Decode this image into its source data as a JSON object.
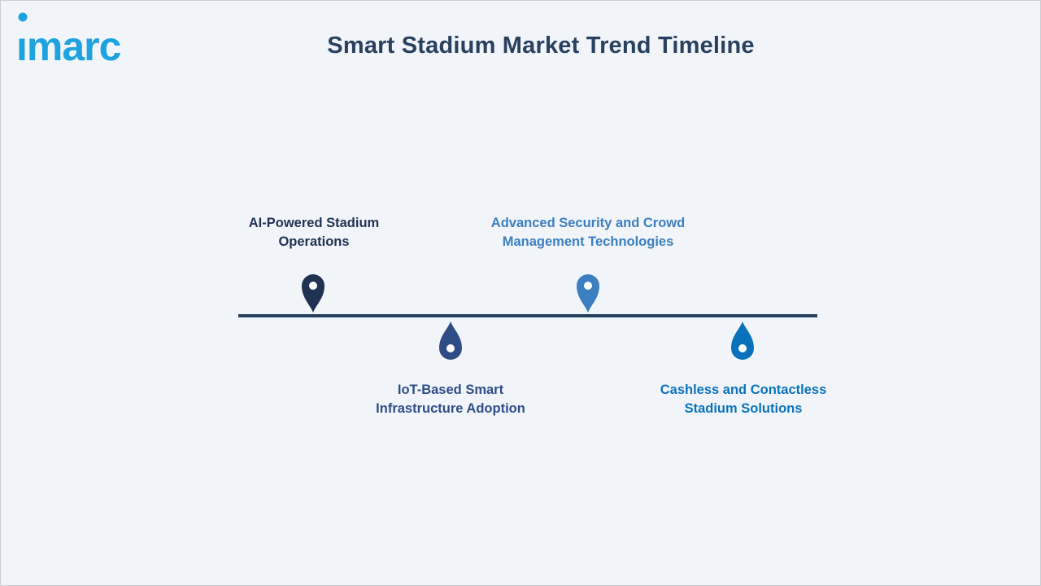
{
  "title": "Smart Stadium Market Trend Timeline",
  "logo": {
    "text": "imarc",
    "color": "#1fa3e0"
  },
  "timeline": {
    "line_color": "#28415f",
    "items": [
      {
        "lines": [
          "AI-Powered Stadium",
          "Operations"
        ],
        "color": "#1f3251",
        "position": "above",
        "icon": "map-pin-icon"
      },
      {
        "lines": [
          "IoT-Based Smart",
          "Infrastructure Adoption"
        ],
        "color": "#2e4d87",
        "position": "below",
        "icon": "droplet-pin-icon"
      },
      {
        "lines": [
          "Advanced Security and Crowd",
          "Management Technologies"
        ],
        "color": "#3b7fc0",
        "position": "above",
        "icon": "map-pin-icon"
      },
      {
        "lines": [
          "Cashless and Contactless",
          "Stadium Solutions"
        ],
        "color": "#0a72bb",
        "position": "below",
        "icon": "droplet-pin-icon"
      }
    ]
  }
}
